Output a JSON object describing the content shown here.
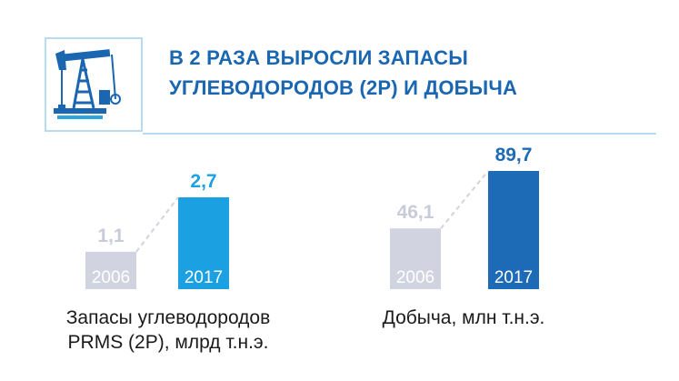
{
  "header": {
    "title_line1": "В 2 РАЗА ВЫРОСЛИ ЗАПАСЫ",
    "title_line2": "УГЛЕВОДОРОДОВ (2P) И ДОБЫЧА",
    "icon": "oil-pump-icon"
  },
  "chart_data": [
    {
      "type": "bar",
      "categories": [
        "2006",
        "2017"
      ],
      "values": [
        1.1,
        2.7
      ],
      "value_labels": [
        "1,1",
        "2,7"
      ],
      "caption_line1": "Запасы углеводородов",
      "caption_line2": "PRMS (2P), млрд т.н.э.",
      "colors": [
        "#d1d3e0",
        "#1ba1e2"
      ],
      "label_colors": [
        "#c9cbd8",
        "#1ba1e2"
      ]
    },
    {
      "type": "bar",
      "categories": [
        "2006",
        "2017"
      ],
      "values": [
        46.1,
        89.7
      ],
      "value_labels": [
        "46,1",
        "89,7"
      ],
      "caption_line1": "Добыча, млн т.н.э.",
      "colors": [
        "#d1d3e0",
        "#1d6bb7"
      ],
      "label_colors": [
        "#c9cbd8",
        "#1d6bb7"
      ]
    }
  ]
}
